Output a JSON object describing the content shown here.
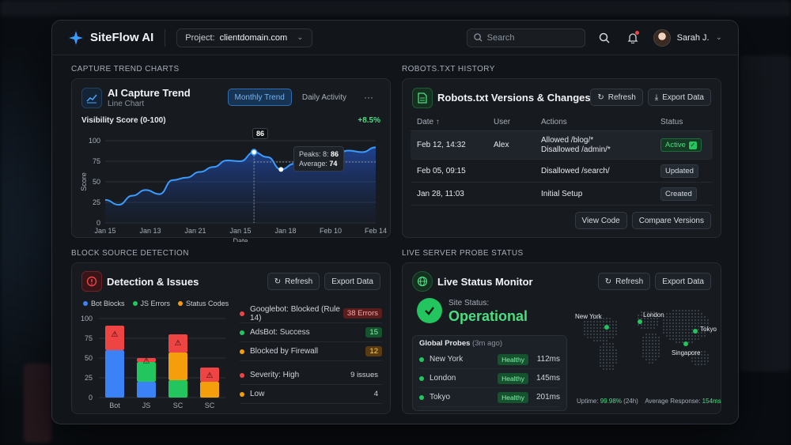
{
  "app": {
    "name": "SiteFlow AI",
    "project_label": "Project:",
    "project_value": "clientdomain.com"
  },
  "header": {
    "search_placeholder": "Search",
    "user_name": "Sarah J."
  },
  "sections": {
    "capture": "CAPTURE TREND CHARTS",
    "robots": "ROBOTS.TXT HISTORY",
    "block": "BLOCK SOURCE DETECTION",
    "probe": "LIVE SERVER PROBE STATUS"
  },
  "capture_card": {
    "title": "AI Capture Trend",
    "subtitle": "Line Chart",
    "tab_monthly": "Monthly Trend",
    "tab_daily": "Daily Activity",
    "more": "···",
    "metric_label": "Visibility Score (0-100)",
    "change": "+8.5%",
    "peak_marker": "86",
    "tooltip_peak_label": "Peaks: 8:",
    "tooltip_peak_value": "86",
    "tooltip_avg_label": "Average:",
    "tooltip_avg_value": "74"
  },
  "robots_card": {
    "title": "Robots.txt Versions & Changes",
    "refresh": "Refresh",
    "export": "Export Data",
    "columns": [
      "Date ↑",
      "User",
      "Actions",
      "Status"
    ],
    "rows": [
      {
        "date": "Feb 12, 14:32",
        "user": "Alex",
        "action1": "Allowed /blog/*",
        "action2": "Disallowed /admin/*",
        "status": "Active"
      },
      {
        "date": "Feb 05, 09:15",
        "user": "",
        "action1": "Disallowed /search/",
        "action2": "",
        "status": "Updated"
      },
      {
        "date": "Jan 28, 11:03",
        "user": "",
        "action1": "Initial Setup",
        "action2": "",
        "status": "Created"
      }
    ],
    "view_code": "View Code",
    "compare": "Compare Versions"
  },
  "detection_card": {
    "title": "Detection & Issues",
    "refresh": "Refresh",
    "export": "Export Data",
    "issues": [
      {
        "label": "Googlebot: Blocked (Rule 14)",
        "count": "38 Errors",
        "dot": "#ef4444",
        "pill_bg": "#5a1c1c",
        "pill_fg": "#fca5a5"
      },
      {
        "label": "AdsBot: Success",
        "count": "15",
        "dot": "#22c55e",
        "pill_bg": "#14532d",
        "pill_fg": "#86efac"
      },
      {
        "label": "Blocked by Firewall",
        "count": "12",
        "dot": "#f59e0b",
        "pill_bg": "#5a3a10",
        "pill_fg": "#fcd34d"
      },
      {
        "label": "Severity: High",
        "count": "9 issues",
        "dot": "#ef4444",
        "pill_bg": "transparent",
        "pill_fg": "#d0d5dc"
      },
      {
        "label": "Low",
        "count": "4",
        "dot": "#f59e0b",
        "pill_bg": "transparent",
        "pill_fg": "#d0d5dc"
      }
    ]
  },
  "status_card": {
    "title": "Live Status Monitor",
    "refresh": "Refresh",
    "export": "Export Data",
    "site_status_label": "Site Status:",
    "site_status_value": "Operational",
    "probes_label": "Global Probes",
    "probes_time": "(3m ago)",
    "probes": [
      {
        "city": "New York",
        "state": "Healthy",
        "ms": "112ms"
      },
      {
        "city": "London",
        "state": "Healthy",
        "ms": "145ms"
      },
      {
        "city": "Tokyo",
        "state": "Healthy",
        "ms": "201ms"
      }
    ],
    "map_labels": [
      "New York",
      "London",
      "Tokyo",
      "Singapore"
    ],
    "uptime_label": "Uptime:",
    "uptime_value": "99.98%",
    "uptime_period": "(24h)",
    "avg_label": "Average Response:",
    "avg_value": "154ms"
  },
  "chart_data": [
    {
      "type": "line",
      "title": "Visibility Score (0-100)",
      "xlabel": "Date",
      "ylabel": "Score",
      "x_ticks": [
        "Jan 15",
        "Jan 13",
        "Jan 21",
        "Jan 15",
        "Jan 18",
        "Feb 10",
        "Feb 14"
      ],
      "y_ticks": [
        0,
        25,
        50,
        75,
        100
      ],
      "ylim": [
        0,
        100
      ],
      "series": [
        {
          "values": [
            28,
            22,
            33,
            40,
            35,
            52,
            55,
            62,
            68,
            76,
            75,
            86,
            80,
            65,
            72,
            78,
            82,
            84,
            88,
            86,
            92
          ]
        }
      ],
      "accent": "#3b82f6"
    },
    {
      "type": "bar",
      "categories": [
        "Bot",
        "JS",
        "SC",
        "SC"
      ],
      "series": [
        {
          "name": "Bot Blocks",
          "color": "#3b82f6",
          "values": [
            60,
            20,
            0,
            0
          ]
        },
        {
          "name": "JS Errors",
          "color": "#22c55e",
          "values": [
            0,
            25,
            22,
            0
          ]
        },
        {
          "name": "Status Codes",
          "color": "#f59e0b",
          "values": [
            0,
            0,
            35,
            20
          ]
        },
        {
          "name": "",
          "color": "#ef4444",
          "values": [
            31,
            5,
            23,
            18
          ]
        }
      ],
      "y_ticks": [
        0,
        25,
        50,
        75,
        100
      ],
      "ylim": [
        0,
        100
      ]
    }
  ]
}
